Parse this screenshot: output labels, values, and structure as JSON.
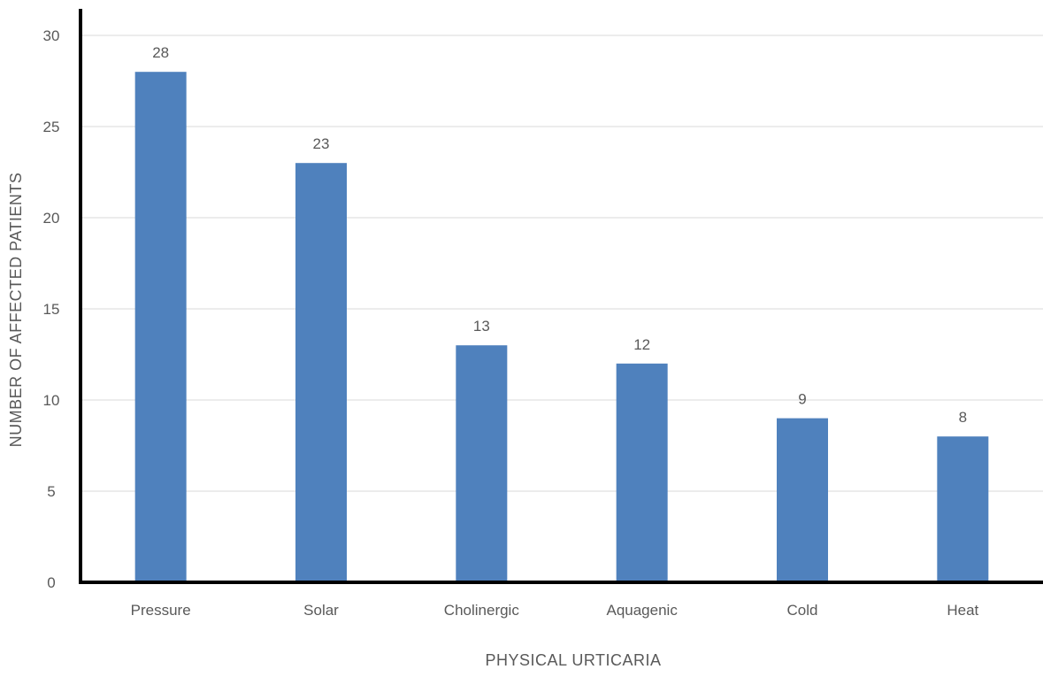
{
  "chart_data": {
    "type": "bar",
    "title": "",
    "xlabel": "PHYSICAL URTICARIA",
    "ylabel": "NUMBER OF AFFECTED PATIENTS",
    "categories": [
      "Pressure",
      "Solar",
      "Cholinergic",
      "Aquagenic",
      "Cold",
      "Heat"
    ],
    "values": [
      28,
      23,
      13,
      12,
      9,
      8
    ],
    "ylim": [
      0,
      30
    ],
    "yticks": [
      0,
      5,
      10,
      15,
      20,
      25,
      30
    ],
    "grid": true,
    "legend": "none",
    "bar_color": "#4f81bd",
    "grid_color": "#d9d9d9",
    "axis_color": "#000000"
  }
}
